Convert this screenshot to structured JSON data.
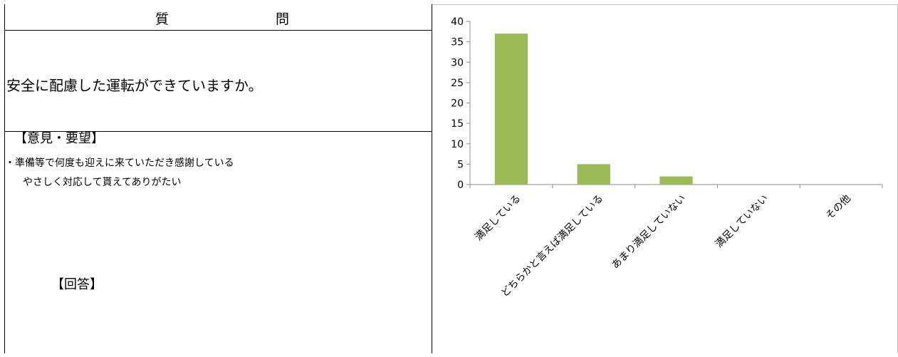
{
  "header": {
    "col1": "質",
    "col2": "問"
  },
  "question": "安全に配慮した運転ができていますか。",
  "opinion": {
    "heading": "【意見・要望】",
    "items": [
      "・準備等で何度も迎えに来ていただき感謝している",
      "やさしく対応して貰えてありがたい"
    ]
  },
  "answer": {
    "heading": "【回答】"
  },
  "chart_data": {
    "type": "bar",
    "categories": [
      "満足している",
      "どちらかと言えば満足している",
      "あまり満足していない",
      "満足していない",
      "その他"
    ],
    "values": [
      37,
      5,
      2,
      0,
      0
    ],
    "ylim": [
      0,
      40
    ],
    "yticks": [
      0,
      5,
      10,
      15,
      20,
      25,
      30,
      35,
      40
    ],
    "bar_color": "#9bbb59",
    "grid": false,
    "legend": "none"
  }
}
